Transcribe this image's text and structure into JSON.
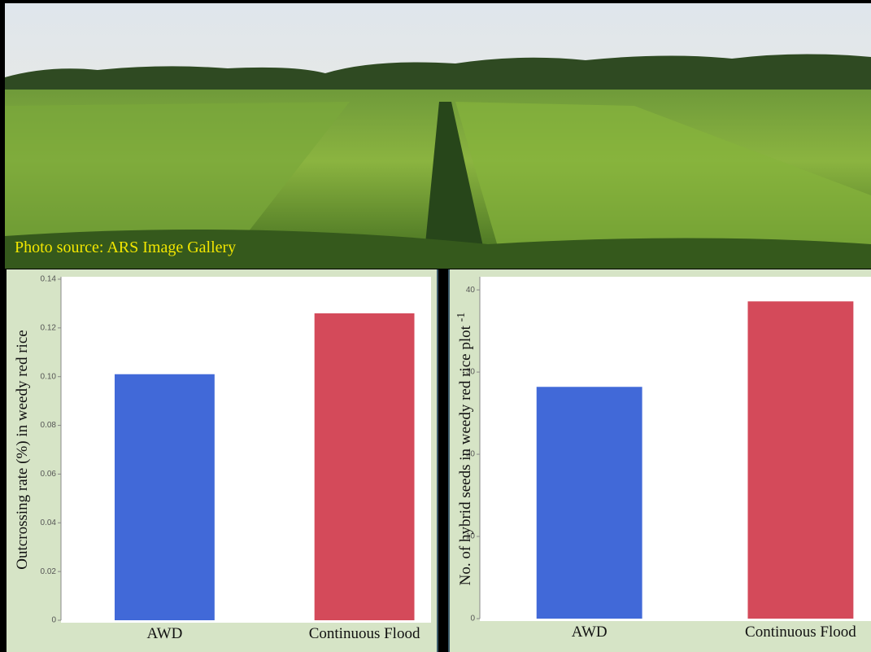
{
  "photo_caption": "Photo source: ARS Image Gallery",
  "chart_data": [
    {
      "type": "bar",
      "y_label": "Outcrossing rate (%) in weedy red rice",
      "categories": [
        "AWD",
        "Continuous Flood"
      ],
      "values": [
        0.101,
        0.126
      ],
      "colors": [
        "#4169d8",
        "#d44a5a"
      ],
      "ylim": [
        0,
        0.14
      ],
      "yticks": [
        0,
        0.02,
        0.04,
        0.06,
        0.08,
        {
          "value": 0.1,
          "label": "0.10"
        },
        0.12,
        0.14
      ]
    },
    {
      "type": "bar",
      "y_label": "No. of hybrid seeds in weedy red rice plot",
      "y_label_superscript": "-1",
      "categories": [
        "AWD",
        "Continuous Flood"
      ],
      "values": [
        28.2,
        38.6
      ],
      "colors": [
        "#4169d8",
        "#d44a5a"
      ],
      "ylim": [
        0,
        41.3
      ],
      "yticks": [
        0,
        10,
        20,
        30,
        40
      ]
    }
  ]
}
